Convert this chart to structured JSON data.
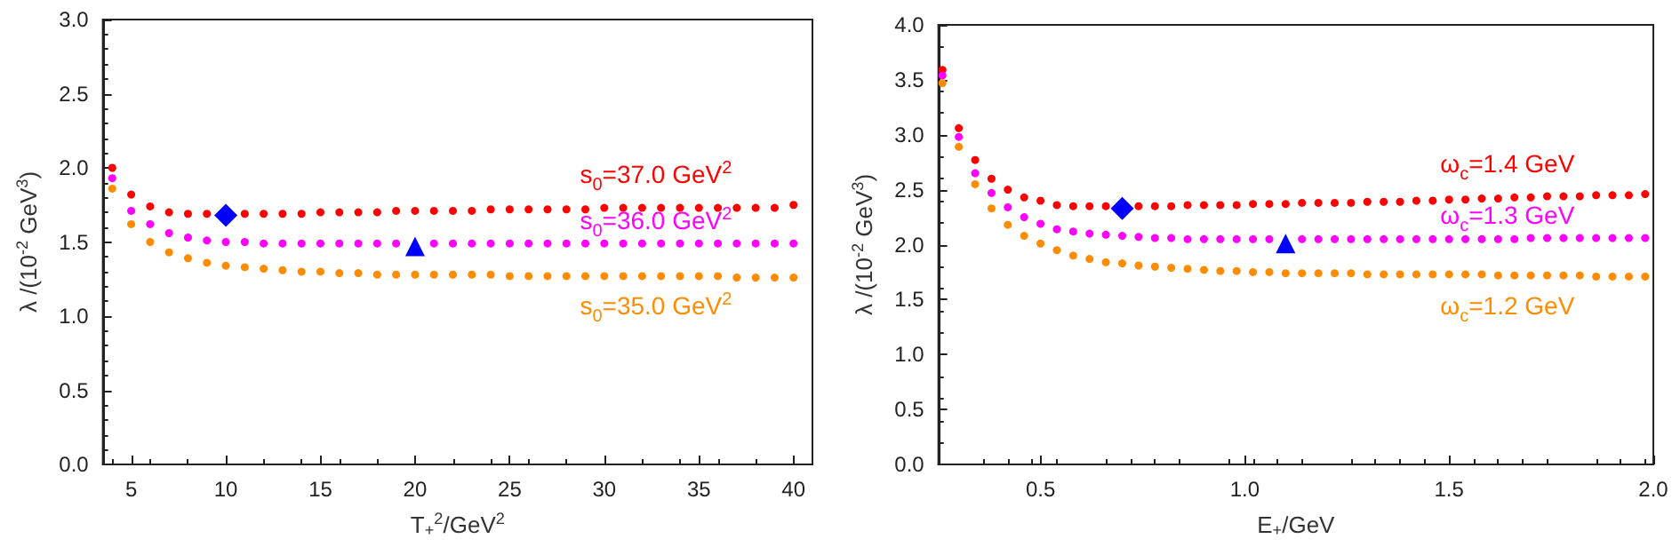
{
  "chart_data": [
    {
      "type": "scatter",
      "xlabel": "T$_{+}$$^{2}$/GeV$^{2}$",
      "ylabel": "λ /(10$^{-2}$ GeV$^{3}$)",
      "marker": "circle",
      "grid": false,
      "legend": false,
      "xlim": [
        3.5,
        41
      ],
      "xticks": [
        5,
        10,
        15,
        20,
        25,
        30,
        35,
        40
      ],
      "ylim": [
        0,
        3
      ],
      "yticks": [
        {
          "value": 0,
          "label": "0.0"
        },
        {
          "value": 0.5,
          "label": "0.5"
        },
        {
          "value": 1,
          "label": "1.0"
        },
        {
          "value": 1.5,
          "label": "1.5"
        },
        {
          "value": 2,
          "label": "2.0"
        },
        {
          "value": 2.5,
          "label": "2.5"
        },
        {
          "value": 3,
          "label": "3.0"
        }
      ],
      "x": [
        4,
        5,
        6,
        7,
        8,
        9,
        10,
        11,
        12,
        13,
        14,
        15,
        16,
        17,
        18,
        19,
        20,
        21,
        22,
        23,
        24,
        25,
        26,
        27,
        28,
        29,
        30,
        31,
        32,
        33,
        34,
        35,
        36,
        37,
        38,
        39,
        40
      ],
      "series": [
        {
          "name": "s$_{0}$=37.0 GeV$^{2}$",
          "color": "#ff0000",
          "values": [
            2.0,
            1.82,
            1.74,
            1.7,
            1.69,
            1.69,
            null,
            1.69,
            1.69,
            1.69,
            1.69,
            1.7,
            1.7,
            1.7,
            1.7,
            1.71,
            1.71,
            1.71,
            1.71,
            1.71,
            1.72,
            1.72,
            1.72,
            1.72,
            1.72,
            1.72,
            1.73,
            1.73,
            1.73,
            1.73,
            1.73,
            1.73,
            1.73,
            1.73,
            1.73,
            1.73,
            1.75
          ]
        },
        {
          "name": "s$_{0}$=36.0 GeV$^{2}$",
          "color": "#ff00ff",
          "values": [
            1.93,
            1.71,
            1.62,
            1.56,
            1.53,
            1.51,
            1.5,
            1.5,
            1.49,
            1.49,
            1.49,
            1.49,
            1.49,
            1.49,
            1.49,
            1.49,
            null,
            1.49,
            1.49,
            1.49,
            1.49,
            1.49,
            1.49,
            1.49,
            1.49,
            1.49,
            1.49,
            1.49,
            1.49,
            1.49,
            1.49,
            1.49,
            1.49,
            1.49,
            1.49,
            1.49,
            1.49
          ]
        },
        {
          "name": "s$_{0}$=35.0 GeV$^{2}$",
          "color": "#ff8c00",
          "values": [
            1.86,
            1.62,
            1.5,
            1.43,
            1.39,
            1.36,
            1.34,
            1.33,
            1.32,
            1.31,
            1.3,
            1.3,
            1.29,
            1.29,
            1.28,
            1.28,
            1.28,
            1.28,
            1.28,
            1.28,
            1.28,
            1.27,
            1.27,
            1.27,
            1.27,
            1.27,
            1.27,
            1.27,
            1.27,
            1.27,
            1.27,
            1.27,
            1.27,
            1.26,
            1.26,
            1.26,
            1.26
          ]
        },
        {
          "color": "#0000ff",
          "marker": "diamond",
          "x": [
            10
          ],
          "values": [
            1.68
          ]
        },
        {
          "color": "#0000ff",
          "marker": "triangle",
          "x": [
            20
          ],
          "values": [
            1.47
          ]
        }
      ]
    },
    {
      "type": "scatter",
      "xlabel": "E$_{+}$/GeV",
      "ylabel": "λ /(10$^{-2}$ GeV$^{3}$)",
      "marker": "circle",
      "grid": false,
      "legend": false,
      "xlim": [
        0.25,
        2.0
      ],
      "xticks": [
        0.5,
        {
          "value": 1,
          "label": "1.0"
        },
        1.5,
        {
          "value": 2,
          "label": "2.0"
        }
      ],
      "ylim": [
        0,
        4
      ],
      "yticks": [
        {
          "value": 0,
          "label": "0.0"
        },
        0.5,
        {
          "value": 1,
          "label": "1.0"
        },
        1.5,
        {
          "value": 2,
          "label": "2.0"
        },
        2.5,
        {
          "value": 3,
          "label": "3.0"
        },
        3.5,
        {
          "value": 4,
          "label": "4.0"
        }
      ],
      "x": [
        0.26,
        0.3,
        0.34,
        0.38,
        0.42,
        0.46,
        0.5,
        0.54,
        0.58,
        0.62,
        0.66,
        0.7,
        0.74,
        0.78,
        0.82,
        0.86,
        0.9,
        0.94,
        0.98,
        1.02,
        1.06,
        1.1,
        1.14,
        1.18,
        1.22,
        1.26,
        1.3,
        1.34,
        1.38,
        1.42,
        1.46,
        1.5,
        1.54,
        1.58,
        1.62,
        1.66,
        1.7,
        1.74,
        1.78,
        1.82,
        1.86,
        1.9,
        1.94,
        1.98
      ],
      "series": [
        {
          "name": "ω$_{c}$=1.4 GeV",
          "color": "#ff0000",
          "values": [
            3.59,
            3.06,
            2.77,
            2.6,
            2.5,
            2.43,
            2.4,
            2.36,
            2.35,
            2.35,
            2.35,
            null,
            2.35,
            2.35,
            2.35,
            2.36,
            2.36,
            2.36,
            2.36,
            2.37,
            2.37,
            2.37,
            2.38,
            2.38,
            2.38,
            2.38,
            2.39,
            2.39,
            2.39,
            2.4,
            2.4,
            2.41,
            2.41,
            2.42,
            2.42,
            2.43,
            2.43,
            2.44,
            2.44,
            2.44,
            2.45,
            2.45,
            2.45,
            2.46
          ]
        },
        {
          "name": "ω$_{c}$=1.3 GeV",
          "color": "#ff00ff",
          "values": [
            3.54,
            2.98,
            2.65,
            2.47,
            2.34,
            2.25,
            2.19,
            2.14,
            2.12,
            2.1,
            2.09,
            2.08,
            2.07,
            2.06,
            2.06,
            2.05,
            2.05,
            2.05,
            2.05,
            2.05,
            2.05,
            null,
            2.05,
            2.05,
            2.05,
            2.05,
            2.05,
            2.05,
            2.05,
            2.05,
            2.05,
            2.05,
            2.05,
            2.05,
            2.05,
            2.05,
            2.06,
            2.06,
            2.06,
            2.06,
            2.06,
            2.06,
            2.06,
            2.06
          ]
        },
        {
          "name": "ω$_{c}$=1.2 GeV",
          "color": "#ff8c00",
          "values": [
            3.47,
            2.89,
            2.55,
            2.33,
            2.18,
            2.08,
            2.01,
            1.95,
            1.9,
            1.87,
            1.84,
            1.83,
            1.81,
            1.8,
            1.79,
            1.78,
            1.77,
            1.76,
            1.76,
            1.75,
            1.75,
            1.74,
            1.74,
            1.74,
            1.74,
            1.74,
            1.73,
            1.73,
            1.73,
            1.73,
            1.73,
            1.73,
            1.73,
            1.73,
            1.72,
            1.72,
            1.72,
            1.72,
            1.72,
            1.72,
            1.71,
            1.71,
            1.71,
            1.71
          ]
        },
        {
          "color": "#0000ff",
          "marker": "diamond",
          "x": [
            0.7
          ],
          "values": [
            2.33
          ]
        },
        {
          "color": "#0000ff",
          "marker": "triangle",
          "x": [
            1.1
          ],
          "values": [
            2.01
          ]
        }
      ]
    }
  ]
}
